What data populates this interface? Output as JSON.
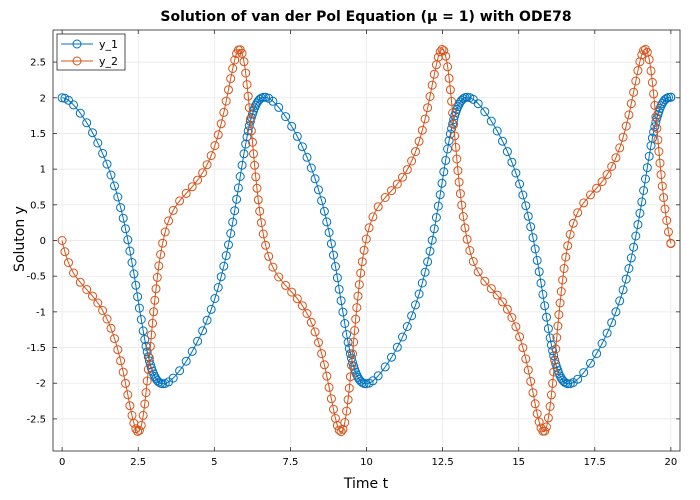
{
  "chart_data": {
    "type": "line",
    "title": "Solution of van der Pol Equation (μ = 1) with ODE78",
    "xlabel": "Time t",
    "ylabel": "Soluton y",
    "xlim": [
      -0.3,
      20.3
    ],
    "ylim": [
      -2.95,
      2.95
    ],
    "xticks": [
      0,
      2.5,
      5,
      7.5,
      10,
      12.5,
      15,
      17.5,
      20
    ],
    "xtick_labels": [
      "0",
      "2.5",
      "5",
      "7.5",
      "10",
      "12.5",
      "15",
      "17.5",
      "20"
    ],
    "yticks": [
      -2.5,
      -2,
      -1.5,
      -1,
      -0.5,
      0,
      0.5,
      1,
      1.5,
      2,
      2.5
    ],
    "ytick_labels": [
      "-2.5",
      "-2",
      "-1.5",
      "-1",
      "-0.5",
      "0",
      "0.5",
      "1",
      "1.5",
      "2",
      "2.5"
    ],
    "grid": true,
    "legend_position": "top-left",
    "marker": "open-circle",
    "mu": 1,
    "t_range": [
      0,
      20
    ],
    "initial_conditions": [
      2,
      0
    ],
    "series": [
      {
        "name": "y_1",
        "color": "#0072BD"
      },
      {
        "name": "y_2",
        "color": "#D95319"
      }
    ]
  }
}
